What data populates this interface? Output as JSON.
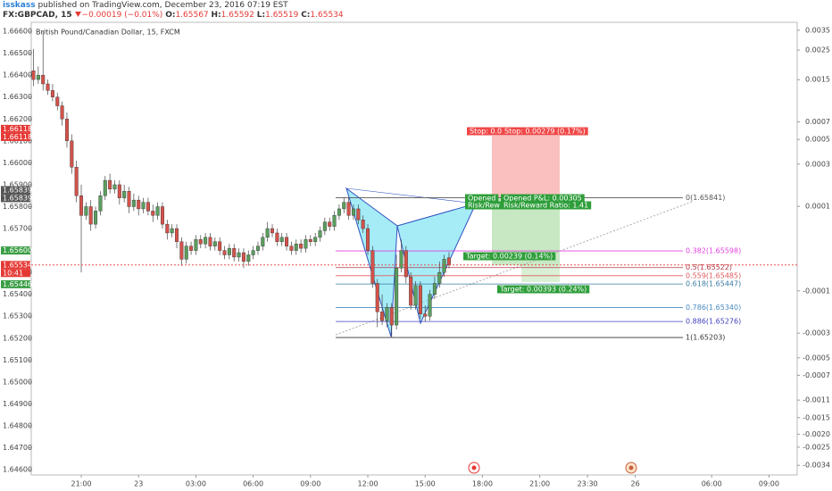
{
  "header": {
    "author": "isskass",
    "published": "published on TradingView.com, December 23, 2016 07:19 EST",
    "symbol": "FX:GBPCAD, 15",
    "change": "−0.00019 (−0.01%)",
    "prefixes": [
      "O:",
      "H:",
      "L:",
      "C:"
    ]
  },
  "chart_data": {
    "type": "candlestick",
    "title": "British Pound/Canadian Dollar, 15, FXCM",
    "up_color": "#5a9e5e",
    "down_color": "#d4524a",
    "x": [
      0,
      1,
      2,
      3,
      4,
      5,
      6,
      7,
      8,
      9,
      10,
      11,
      12,
      13,
      14,
      15,
      16,
      17,
      18,
      19,
      20,
      21,
      22,
      23,
      24,
      25,
      26,
      27,
      28,
      29,
      30,
      31,
      32,
      33,
      34,
      35,
      36,
      37,
      38,
      39,
      40,
      41,
      42,
      43,
      44,
      45,
      46,
      47,
      48,
      49,
      50,
      51,
      52,
      53,
      54,
      55,
      56,
      57,
      58,
      59,
      60,
      61,
      62,
      63,
      64,
      65,
      66,
      67,
      68,
      69,
      70,
      71,
      72,
      73,
      74,
      75,
      76,
      77,
      78,
      79,
      80,
      81,
      82,
      83,
      84,
      85,
      86,
      87
    ],
    "open": [
      1.6642,
      1.6638,
      1.664,
      1.6636,
      1.6633,
      1.663,
      1.6626,
      1.662,
      1.661,
      1.6598,
      1.6585,
      1.6576,
      1.658,
      1.6572,
      1.6578,
      1.6585,
      1.6592,
      1.6588,
      1.659,
      1.6584,
      1.6587,
      1.658,
      1.6583,
      1.6579,
      1.6582,
      1.6578,
      1.6576,
      1.658,
      1.6572,
      1.6568,
      1.657,
      1.6564,
      1.6556,
      1.6562,
      1.656,
      1.6565,
      1.6563,
      1.6566,
      1.6562,
      1.6564,
      1.656,
      1.6558,
      1.6561,
      1.6557,
      1.6559,
      1.6555,
      1.6558,
      1.656,
      1.6562,
      1.6566,
      1.657,
      1.6568,
      1.6564,
      1.6566,
      1.6562,
      1.656,
      1.6563,
      1.6561,
      1.6565,
      1.6564,
      1.6566,
      1.6569,
      1.6573,
      1.6571,
      1.6576,
      1.6579,
      1.6582,
      1.6576,
      1.6579,
      1.6574,
      1.657,
      1.656,
      1.6545,
      1.6532,
      1.6528,
      1.6534,
      1.6526,
      1.6552,
      1.656,
      1.6548,
      1.6535,
      1.6544,
      1.6531,
      1.653,
      1.654,
      1.6545,
      1.655,
      1.65567
    ],
    "high": [
      1.6652,
      1.6644,
      1.666,
      1.6638,
      1.6636,
      1.6632,
      1.6628,
      1.6623,
      1.6613,
      1.6601,
      1.659,
      1.6582,
      1.6583,
      1.658,
      1.6587,
      1.6594,
      1.6595,
      1.6592,
      1.6592,
      1.659,
      1.6589,
      1.6586,
      1.6585,
      1.6584,
      1.6584,
      1.6581,
      1.6582,
      1.6582,
      1.6574,
      1.6572,
      1.6572,
      1.6566,
      1.6564,
      1.6564,
      1.6567,
      1.6567,
      1.6568,
      1.6568,
      1.6566,
      1.6566,
      1.6562,
      1.6563,
      1.6563,
      1.6561,
      1.6561,
      1.656,
      1.6562,
      1.6564,
      1.6568,
      1.6573,
      1.6572,
      1.657,
      1.6568,
      1.6568,
      1.6564,
      1.6565,
      1.6565,
      1.6567,
      1.6567,
      1.6568,
      1.6571,
      1.6575,
      1.6575,
      1.6578,
      1.6581,
      1.65841,
      1.6584,
      1.6581,
      1.6581,
      1.6576,
      1.6572,
      1.6562,
      1.6547,
      1.654,
      1.6536,
      1.6536,
      1.6558,
      1.6565,
      1.6562,
      1.655,
      1.6546,
      1.6546,
      1.6535,
      1.6542,
      1.6548,
      1.6555,
      1.6558,
      1.65592
    ],
    "low": [
      1.6635,
      1.6636,
      1.6633,
      1.6631,
      1.6628,
      1.6624,
      1.6617,
      1.6607,
      1.6595,
      1.6582,
      1.655,
      1.6574,
      1.6569,
      1.657,
      1.6576,
      1.6583,
      1.6586,
      1.6586,
      1.6581,
      1.6582,
      1.6577,
      1.6578,
      1.6576,
      1.6577,
      1.6576,
      1.6573,
      1.6574,
      1.657,
      1.6565,
      1.6566,
      1.6561,
      1.6553,
      1.6554,
      1.6558,
      1.6558,
      1.6561,
      1.6561,
      1.656,
      1.656,
      1.6558,
      1.6556,
      1.6556,
      1.6555,
      1.6555,
      1.6552,
      1.6553,
      1.6556,
      1.6558,
      1.656,
      1.6564,
      1.6566,
      1.6562,
      1.6562,
      1.656,
      1.6558,
      1.6558,
      1.6559,
      1.6559,
      1.6562,
      1.6562,
      1.6564,
      1.6567,
      1.6569,
      1.6569,
      1.6574,
      1.6577,
      1.6574,
      1.6574,
      1.6572,
      1.6568,
      1.6558,
      1.6543,
      1.6525,
      1.6526,
      1.6525,
      1.65203,
      1.6524,
      1.655,
      1.6545,
      1.6533,
      1.6533,
      1.6529,
      1.65276,
      1.6528,
      1.6538,
      1.6543,
      1.6548,
      1.65519
    ],
    "close": [
      1.6638,
      1.664,
      1.6636,
      1.6633,
      1.663,
      1.6626,
      1.662,
      1.661,
      1.6598,
      1.6585,
      1.6576,
      1.658,
      1.6572,
      1.6578,
      1.6585,
      1.6592,
      1.6588,
      1.659,
      1.6584,
      1.6587,
      1.658,
      1.6583,
      1.6579,
      1.6582,
      1.6578,
      1.6576,
      1.658,
      1.6572,
      1.6568,
      1.657,
      1.6564,
      1.6556,
      1.6562,
      1.656,
      1.6565,
      1.6563,
      1.6566,
      1.6562,
      1.6564,
      1.656,
      1.6558,
      1.6561,
      1.6557,
      1.6559,
      1.6555,
      1.6558,
      1.656,
      1.6562,
      1.6566,
      1.657,
      1.6568,
      1.6564,
      1.6566,
      1.6562,
      1.656,
      1.6563,
      1.6561,
      1.6565,
      1.6564,
      1.6566,
      1.6569,
      1.6573,
      1.6571,
      1.6576,
      1.6579,
      1.6582,
      1.6576,
      1.6579,
      1.6574,
      1.657,
      1.656,
      1.6545,
      1.6532,
      1.6528,
      1.6534,
      1.6526,
      1.6552,
      1.656,
      1.6548,
      1.6535,
      1.6544,
      1.6531,
      1.653,
      1.654,
      1.6545,
      1.655,
      1.6556,
      1.65534
    ],
    "xlim": [
      -0.47,
      159.9
    ],
    "xticks": [
      {
        "value": 10,
        "label": "21:00"
      },
      {
        "value": 22,
        "label": "23"
      },
      {
        "value": 34,
        "label": "03:00"
      },
      {
        "value": 46,
        "label": "06:00"
      },
      {
        "value": 58,
        "label": "09:00"
      },
      {
        "value": 70,
        "label": "12:00"
      },
      {
        "value": 82,
        "label": "15:00"
      },
      {
        "value": 94,
        "label": "18:00"
      },
      {
        "value": 106,
        "label": "21:00"
      },
      {
        "value": 116,
        "label": "23:30"
      },
      {
        "value": 126,
        "label": "26"
      },
      {
        "value": 142,
        "label": "06:00"
      },
      {
        "value": 154,
        "label": "09:00"
      }
    ],
    "ylim": [
      1.64576,
      1.66641
    ],
    "yticks": [
      {
        "value": 1.666,
        "label": "1.66600"
      },
      {
        "value": 1.665,
        "label": "1.66500"
      },
      {
        "value": 1.664,
        "label": "1.66400"
      },
      {
        "value": 1.663,
        "label": "1.66300"
      },
      {
        "value": 1.662,
        "label": "1.66200"
      },
      {
        "value": 1.661,
        "label": "1.66100"
      },
      {
        "value": 1.66,
        "label": "1.66000"
      },
      {
        "value": 1.659,
        "label": "1.65900"
      },
      {
        "value": 1.658,
        "label": "1.65800"
      },
      {
        "value": 1.657,
        "label": "1.65700"
      },
      {
        "value": 1.656,
        "label": "1.65600"
      },
      {
        "value": 1.655,
        "label": "1.65500"
      },
      {
        "value": 1.654,
        "label": "1.65400"
      },
      {
        "value": 1.653,
        "label": "1.65300"
      },
      {
        "value": 1.652,
        "label": "1.65200"
      },
      {
        "value": 1.651,
        "label": "1.65100"
      },
      {
        "value": 1.65,
        "label": "1.65000"
      },
      {
        "value": 1.649,
        "label": "1.64900"
      },
      {
        "value": 1.648,
        "label": "1.64800"
      },
      {
        "value": 1.647,
        "label": "1.64700"
      },
      {
        "value": 1.646,
        "label": "1.64600"
      }
    ],
    "y2scale": "symlog",
    "y2linthresh": 0.0001,
    "y2lim": [
      -0.004,
      0.004
    ],
    "y2ticks": [
      0.0035,
      0.0025,
      0.0015,
      0.0007,
      0.0005,
      0.0003,
      0.0001,
      -0.0001,
      -0.0003,
      -0.0005,
      -0.0007,
      -0.0011,
      -0.0015,
      {
        "value": -0.002,
        "label": "-0.0020"
      },
      -0.0025,
      -0.0034
    ],
    "price_tags": [
      {
        "value": 1.66118,
        "label": "1.66118",
        "color": "#e53935"
      },
      {
        "value": 1.66118,
        "label": "1.66118",
        "color": "#e53935"
      },
      {
        "value": 1.65839,
        "label": "1.65839",
        "color": "#555555"
      },
      {
        "value": 1.65839,
        "label": "1.65839",
        "color": "#555555"
      },
      {
        "value": 1.656,
        "label": "1.65600",
        "color": "#3a9e45"
      },
      {
        "value": 1.65534,
        "label": "1.65534",
        "color": "#e53935"
      },
      {
        "value": 1.65446,
        "label": "1.65446",
        "color": "#3a9e45"
      }
    ],
    "countdown": "10:41",
    "fib_levels": [
      {
        "value": 1.65841,
        "label": "0(1.65841)",
        "color": "#555555"
      },
      {
        "value": 1.65598,
        "label": "0.382(1.65598)",
        "color": "#e040e0"
      },
      {
        "value": 1.65522,
        "label": "0.5(1.65522)",
        "color": "#b03a48"
      },
      {
        "value": 1.65485,
        "label": "0.559(1.65485)",
        "color": "#e05a5a"
      },
      {
        "value": 1.65447,
        "label": "0.618(1.65447)",
        "color": "#3a7aa0"
      },
      {
        "value": 1.6534,
        "label": "0.786(1.65340)",
        "color": "#4a8ac0"
      },
      {
        "value": 1.65276,
        "label": "0.886(1.65276)",
        "color": "#4040c0"
      },
      {
        "value": 1.65203,
        "label": "1(1.65203)",
        "color": "#333333"
      }
    ],
    "position_labels": [
      "Stop: 0.0",
      "Stop: 0.00279 (0.17%)",
      "Opened",
      "Opened P&L: 0.00305",
      "Risk/Rew",
      "Risk/Reward Ratio: 1.41",
      "Target: 0.00239 (0.14%)",
      "Target: 0.00393 (0.24%)"
    ]
  }
}
